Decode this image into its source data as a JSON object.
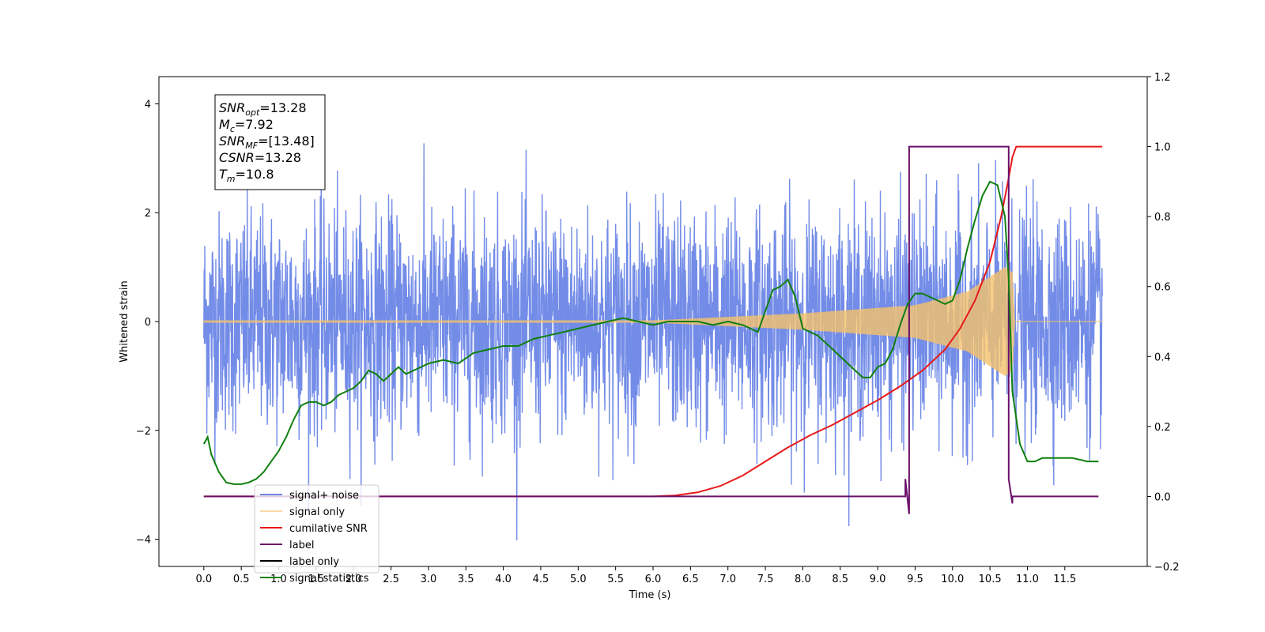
{
  "chart_data": {
    "type": "line",
    "xlabel": "Time (s)",
    "ylabel": "Whitened strain",
    "xlim": [
      -0.6,
      12.6
    ],
    "ylim": [
      -4.5,
      4.5
    ],
    "y2lim": [
      -0.2,
      1.2
    ],
    "x_ticks": [
      "0.0",
      "0.5",
      "1.0",
      "1.5",
      "2.0",
      "2.5",
      "3.0",
      "3.5",
      "4.0",
      "4.5",
      "5.0",
      "5.5",
      "6.0",
      "6.5",
      "7.0",
      "7.5",
      "8.0",
      "8.5",
      "9.0",
      "9.5",
      "10.0",
      "10.5",
      "11.0",
      "11.5"
    ],
    "y_ticks": [
      "4",
      "2",
      "0",
      "−2",
      "−4"
    ],
    "y2_ticks": [
      "1.2",
      "1.0",
      "0.8",
      "0.6",
      "0.4",
      "0.2",
      "0.0",
      "−0.2"
    ],
    "annotation": [
      {
        "base": "SNR",
        "sub": "opt",
        "value": "=13.28"
      },
      {
        "base": "M",
        "sub": "c",
        "value": "=7.92"
      },
      {
        "base": "SNR",
        "sub": "MF",
        "value": "=[13.48]"
      },
      {
        "base": "CSNR",
        "sub": "",
        "value": "=13.28"
      },
      {
        "base": "T",
        "sub": "m",
        "value": "=10.8"
      }
    ],
    "legend_position": "lower-left",
    "series": [
      {
        "name": "signal+ noise",
        "color": "#6b86e6",
        "axis": "left",
        "kind": "noise",
        "x_range": [
          0.0,
          12.0
        ],
        "std": 1.0
      },
      {
        "name": "signal only",
        "color": "#f5c26b",
        "axis": "left",
        "kind": "chirp",
        "x_range": [
          0.0,
          12.0
        ],
        "merger": 10.8,
        "amp_at": [
          [
            6.0,
            0.02
          ],
          [
            8.0,
            0.15
          ],
          [
            9.5,
            0.3
          ],
          [
            10.2,
            0.55
          ],
          [
            10.7,
            1.0
          ],
          [
            10.8,
            0.9
          ],
          [
            10.83,
            0.0
          ]
        ]
      },
      {
        "name": "cumilative SNR",
        "color": "#e81919",
        "axis": "right",
        "x": [
          0.0,
          6.0,
          6.3,
          6.6,
          6.9,
          7.2,
          7.5,
          7.8,
          8.1,
          8.4,
          8.7,
          9.0,
          9.3,
          9.6,
          9.9,
          10.1,
          10.3,
          10.5,
          10.65,
          10.75,
          10.8,
          10.85,
          12.0
        ],
        "y": [
          0.0,
          0.0,
          0.003,
          0.012,
          0.03,
          0.06,
          0.1,
          0.14,
          0.175,
          0.205,
          0.24,
          0.275,
          0.315,
          0.36,
          0.42,
          0.48,
          0.56,
          0.67,
          0.8,
          0.91,
          0.97,
          1.0,
          1.0
        ]
      },
      {
        "name": "label",
        "color": "#6a0f6a",
        "axis": "right",
        "x": [
          0.0,
          9.37,
          9.37,
          9.42,
          9.42,
          10.75,
          10.75,
          10.8,
          10.8,
          11.95
        ],
        "y": [
          0.0,
          0.0,
          0.05,
          -0.05,
          1.0,
          1.0,
          0.05,
          -0.02,
          0.0,
          0.0
        ]
      },
      {
        "name": "label only",
        "color": "#000000",
        "axis": "right",
        "x": [],
        "y": []
      },
      {
        "name": "signal statistics",
        "color": "#0f7f0f",
        "axis": "right",
        "x": [
          0.0,
          0.05,
          0.1,
          0.2,
          0.3,
          0.4,
          0.5,
          0.6,
          0.7,
          0.8,
          0.9,
          1.0,
          1.1,
          1.2,
          1.3,
          1.4,
          1.5,
          1.6,
          1.7,
          1.8,
          1.9,
          2.0,
          2.1,
          2.2,
          2.3,
          2.4,
          2.5,
          2.6,
          2.7,
          2.8,
          2.9,
          3.0,
          3.2,
          3.4,
          3.6,
          3.8,
          4.0,
          4.2,
          4.4,
          4.6,
          4.8,
          5.0,
          5.2,
          5.4,
          5.6,
          5.8,
          6.0,
          6.2,
          6.4,
          6.6,
          6.8,
          7.0,
          7.2,
          7.4,
          7.6,
          7.7,
          7.8,
          7.9,
          8.0,
          8.2,
          8.4,
          8.6,
          8.8,
          8.9,
          9.0,
          9.1,
          9.2,
          9.3,
          9.4,
          9.5,
          9.6,
          9.7,
          9.8,
          9.9,
          10.0,
          10.1,
          10.2,
          10.3,
          10.4,
          10.5,
          10.6,
          10.7,
          10.75,
          10.8,
          10.9,
          11.0,
          11.1,
          11.2,
          11.4,
          11.6,
          11.8,
          11.95
        ],
        "y": [
          0.15,
          0.17,
          0.12,
          0.07,
          0.04,
          0.035,
          0.035,
          0.04,
          0.05,
          0.07,
          0.1,
          0.13,
          0.17,
          0.22,
          0.26,
          0.27,
          0.27,
          0.26,
          0.27,
          0.29,
          0.3,
          0.31,
          0.33,
          0.36,
          0.35,
          0.33,
          0.35,
          0.37,
          0.35,
          0.36,
          0.37,
          0.38,
          0.39,
          0.38,
          0.41,
          0.42,
          0.43,
          0.43,
          0.45,
          0.46,
          0.47,
          0.48,
          0.49,
          0.5,
          0.51,
          0.5,
          0.49,
          0.5,
          0.5,
          0.5,
          0.49,
          0.5,
          0.49,
          0.47,
          0.59,
          0.6,
          0.62,
          0.57,
          0.48,
          0.46,
          0.42,
          0.38,
          0.34,
          0.34,
          0.37,
          0.38,
          0.42,
          0.49,
          0.55,
          0.58,
          0.58,
          0.57,
          0.56,
          0.55,
          0.56,
          0.62,
          0.71,
          0.79,
          0.86,
          0.9,
          0.89,
          0.8,
          0.62,
          0.3,
          0.15,
          0.1,
          0.1,
          0.11,
          0.11,
          0.11,
          0.1,
          0.1
        ]
      }
    ]
  }
}
